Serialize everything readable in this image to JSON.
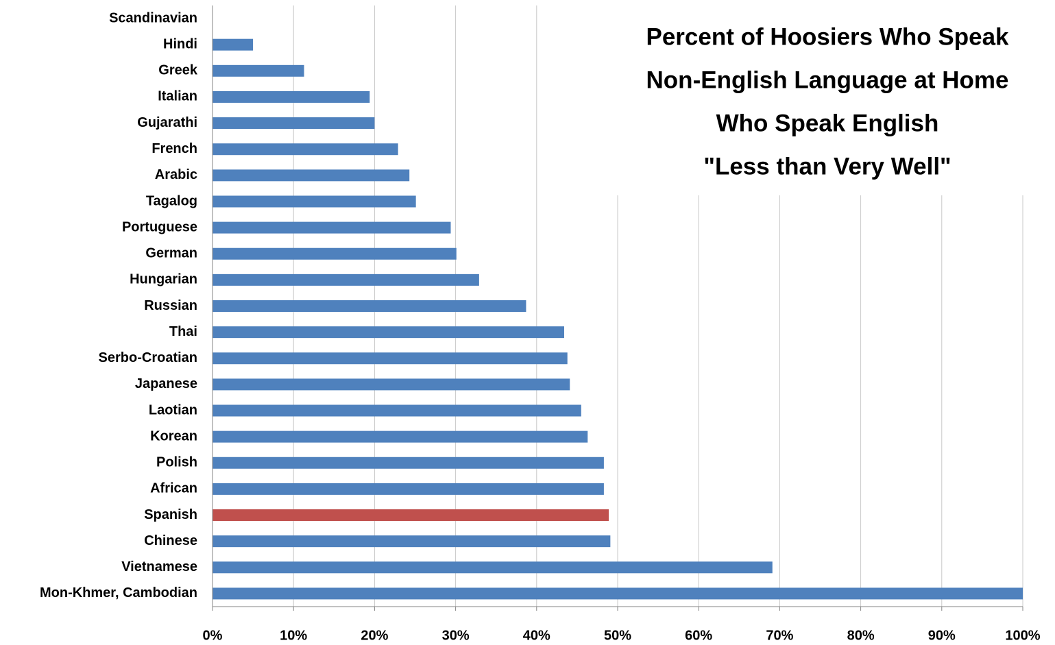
{
  "chart_data": {
    "type": "bar",
    "orientation": "horizontal",
    "title": [
      "Percent of Hoosiers Who Speak",
      "Non-English Language at Home",
      "Who Speak English",
      "\"Less than Very Well\""
    ],
    "categories": [
      "Scandinavian",
      "Hindi",
      "Greek",
      "Italian",
      "Gujarathi",
      "French",
      "Arabic",
      "Tagalog",
      "Portuguese",
      "German",
      "Hungarian",
      "Russian",
      "Thai",
      "Serbo-Croatian",
      "Japanese",
      "Laotian",
      "Korean",
      "Polish",
      "African",
      "Spanish",
      "Chinese",
      "Vietnamese",
      "Mon-Khmer, Cambodian"
    ],
    "values": [
      0,
      5.0,
      11.3,
      19.4,
      20.0,
      22.9,
      24.3,
      25.1,
      29.4,
      30.1,
      32.9,
      38.7,
      43.4,
      43.8,
      44.1,
      45.5,
      46.3,
      48.3,
      48.3,
      48.9,
      49.1,
      69.1,
      100
    ],
    "colors": [
      "#4f81bd",
      "#4f81bd",
      "#4f81bd",
      "#4f81bd",
      "#4f81bd",
      "#4f81bd",
      "#4f81bd",
      "#4f81bd",
      "#4f81bd",
      "#4f81bd",
      "#4f81bd",
      "#4f81bd",
      "#4f81bd",
      "#4f81bd",
      "#4f81bd",
      "#4f81bd",
      "#4f81bd",
      "#4f81bd",
      "#4f81bd",
      "#c0504d",
      "#4f81bd",
      "#4f81bd",
      "#4f81bd"
    ],
    "xlim": [
      0,
      100
    ],
    "xticks": [
      {
        "value": 0,
        "label": "0%"
      },
      {
        "value": 10,
        "label": "10%"
      },
      {
        "value": 20,
        "label": "20%"
      },
      {
        "value": 30,
        "label": "30%"
      },
      {
        "value": 40,
        "label": "40%"
      },
      {
        "value": 50,
        "label": "50%"
      },
      {
        "value": 60,
        "label": "60%"
      },
      {
        "value": 70,
        "label": "70%"
      },
      {
        "value": 80,
        "label": "80%"
      },
      {
        "value": 90,
        "label": "90%"
      },
      {
        "value": 100,
        "label": "100%"
      }
    ],
    "grid": true
  }
}
